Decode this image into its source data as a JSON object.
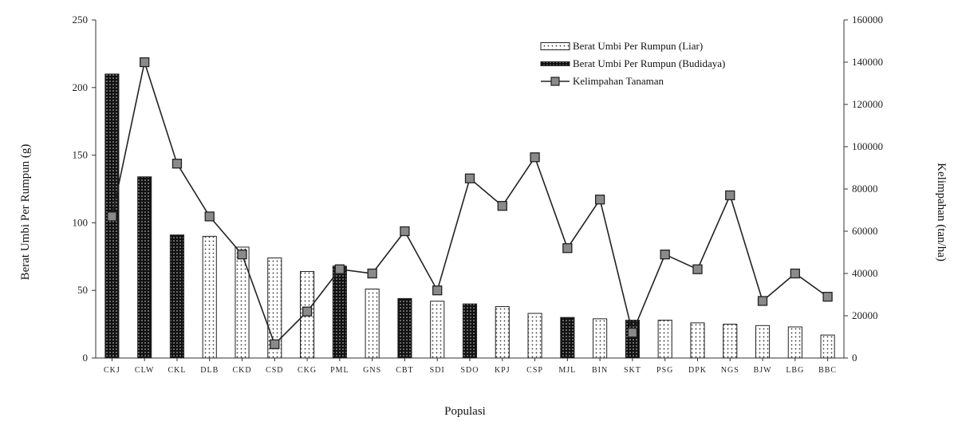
{
  "chart_data": {
    "type": "bar",
    "categories": [
      "CKJ",
      "CLW",
      "CKL",
      "DLB",
      "CKD",
      "CSD",
      "CKG",
      "PML",
      "GNS",
      "CBT",
      "SDI",
      "SDO",
      "KPJ",
      "CSP",
      "MJL",
      "BIN",
      "SKT",
      "PSG",
      "DPK",
      "NGS",
      "BJW",
      "LBG",
      "BBC"
    ],
    "series": [
      {
        "name": "Berat Umbi Per Rumpun (Liar)",
        "kind": "bar",
        "axis": "left",
        "style": "dotted",
        "values": [
          null,
          null,
          null,
          90,
          82,
          74,
          64,
          null,
          51,
          null,
          42,
          null,
          38,
          33,
          null,
          29,
          null,
          28,
          26,
          25,
          24,
          23,
          17
        ]
      },
      {
        "name": "Berat Umbi Per Rumpun (Budidaya)",
        "kind": "bar",
        "axis": "left",
        "style": "dark",
        "values": [
          210,
          134,
          91,
          null,
          null,
          null,
          null,
          68,
          null,
          44,
          null,
          40,
          null,
          null,
          30,
          null,
          28,
          null,
          null,
          null,
          null,
          null,
          null
        ]
      },
      {
        "name": "Kelimpahan Tanaman",
        "kind": "line",
        "axis": "right",
        "values": [
          67000,
          140000,
          92000,
          67000,
          49000,
          6500,
          22000,
          42000,
          40000,
          60000,
          32000,
          85000,
          72000,
          95000,
          52000,
          75000,
          12000,
          49000,
          42000,
          77000,
          27000,
          40000,
          29000
        ]
      }
    ],
    "xlabel": "Populasi",
    "ylabel": "Berat Umbi Per Rumpun (g)",
    "y2label": "Kelimpahan (tan/ha)",
    "ylim": [
      0,
      250
    ],
    "y2lim": [
      0,
      160000
    ],
    "yticks": [
      "0",
      "50",
      "100",
      "150",
      "200",
      "250"
    ],
    "y2ticks": [
      "0",
      "20000",
      "40000",
      "60000",
      "80000",
      "100000",
      "120000",
      "140000",
      "160000"
    ],
    "legend_position": "top-right",
    "grid": false
  }
}
